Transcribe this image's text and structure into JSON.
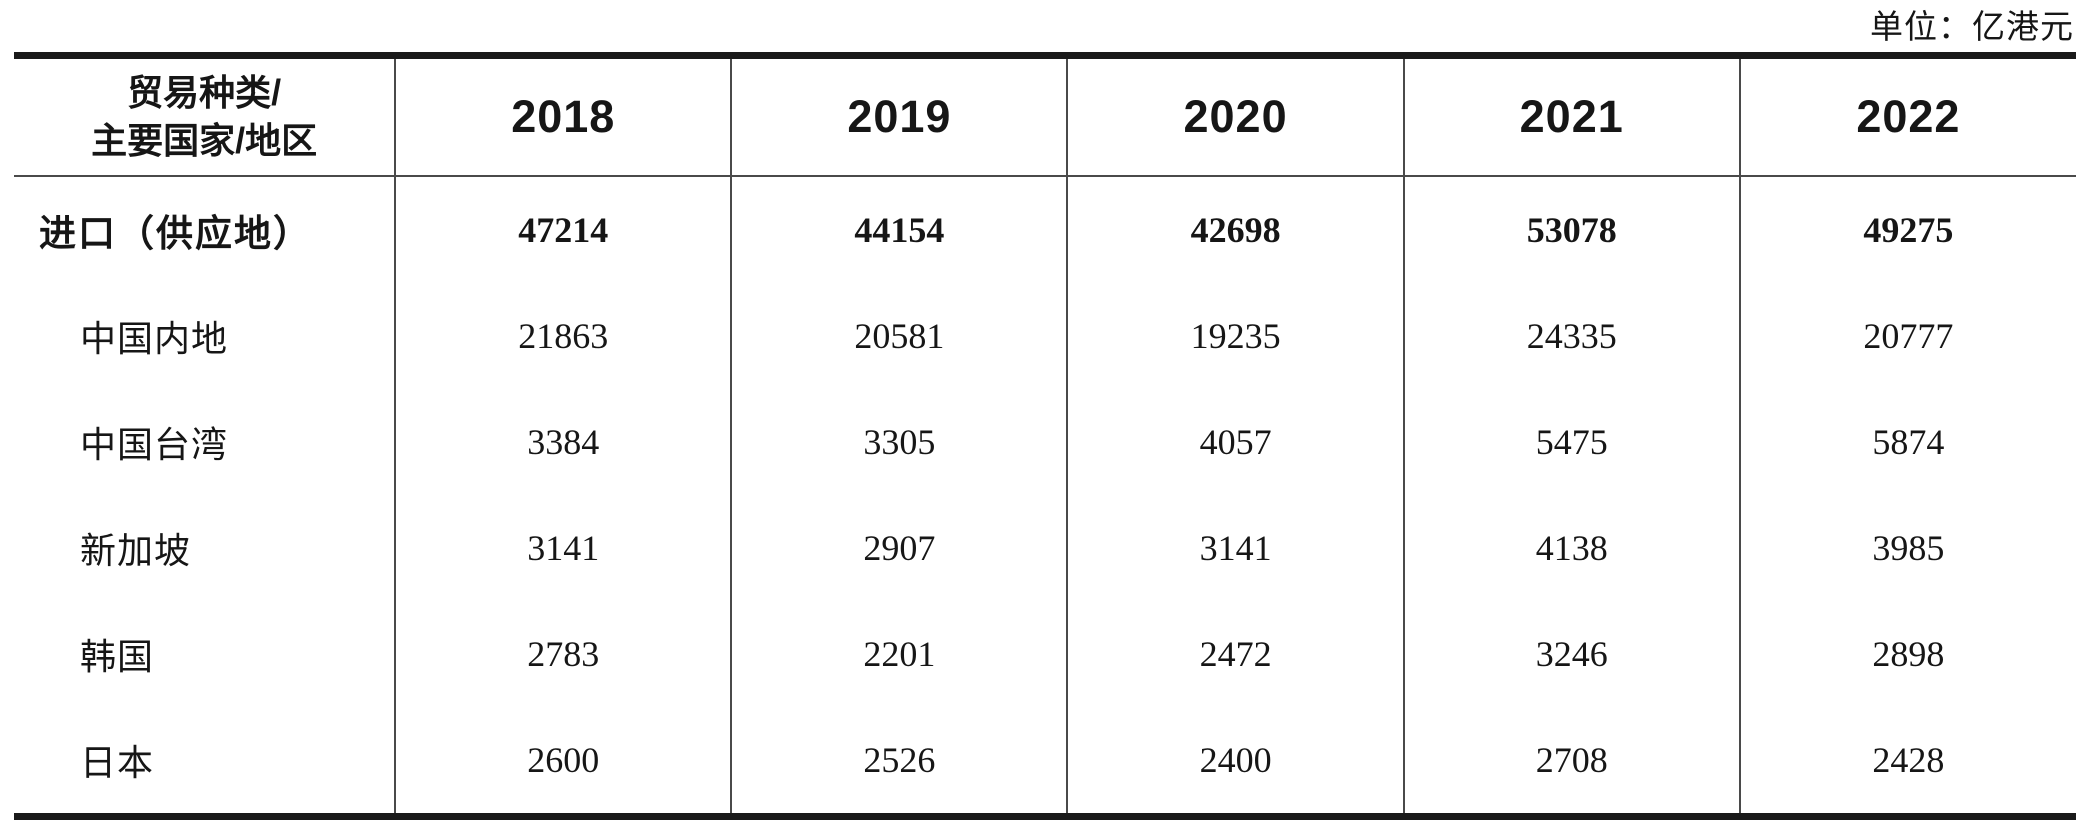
{
  "unit_label": "单位：亿港元",
  "table": {
    "header": {
      "category_line1": "贸易种类/",
      "category_line2": "主要国家/地区",
      "years": [
        "2018",
        "2019",
        "2020",
        "2021",
        "2022"
      ]
    },
    "rows": [
      {
        "label": "进口（供应地）",
        "values": [
          "47214",
          "44154",
          "42698",
          "53078",
          "49275"
        ]
      },
      {
        "label": "中国内地",
        "values": [
          "21863",
          "20581",
          "19235",
          "24335",
          "20777"
        ]
      },
      {
        "label": "中国台湾",
        "values": [
          "3384",
          "3305",
          "4057",
          "5475",
          "5874"
        ]
      },
      {
        "label": "新加坡",
        "values": [
          "3141",
          "2907",
          "3141",
          "4138",
          "3985"
        ]
      },
      {
        "label": "韩国",
        "values": [
          "2783",
          "2201",
          "2472",
          "3246",
          "2898"
        ]
      },
      {
        "label": "日本",
        "values": [
          "2600",
          "2526",
          "2400",
          "2708",
          "2428"
        ]
      }
    ],
    "colors": {
      "text": "#161616",
      "rule_heavy": "#1a1a1a",
      "rule_light": "#4a4a4a",
      "background": "#ffffff"
    }
  }
}
